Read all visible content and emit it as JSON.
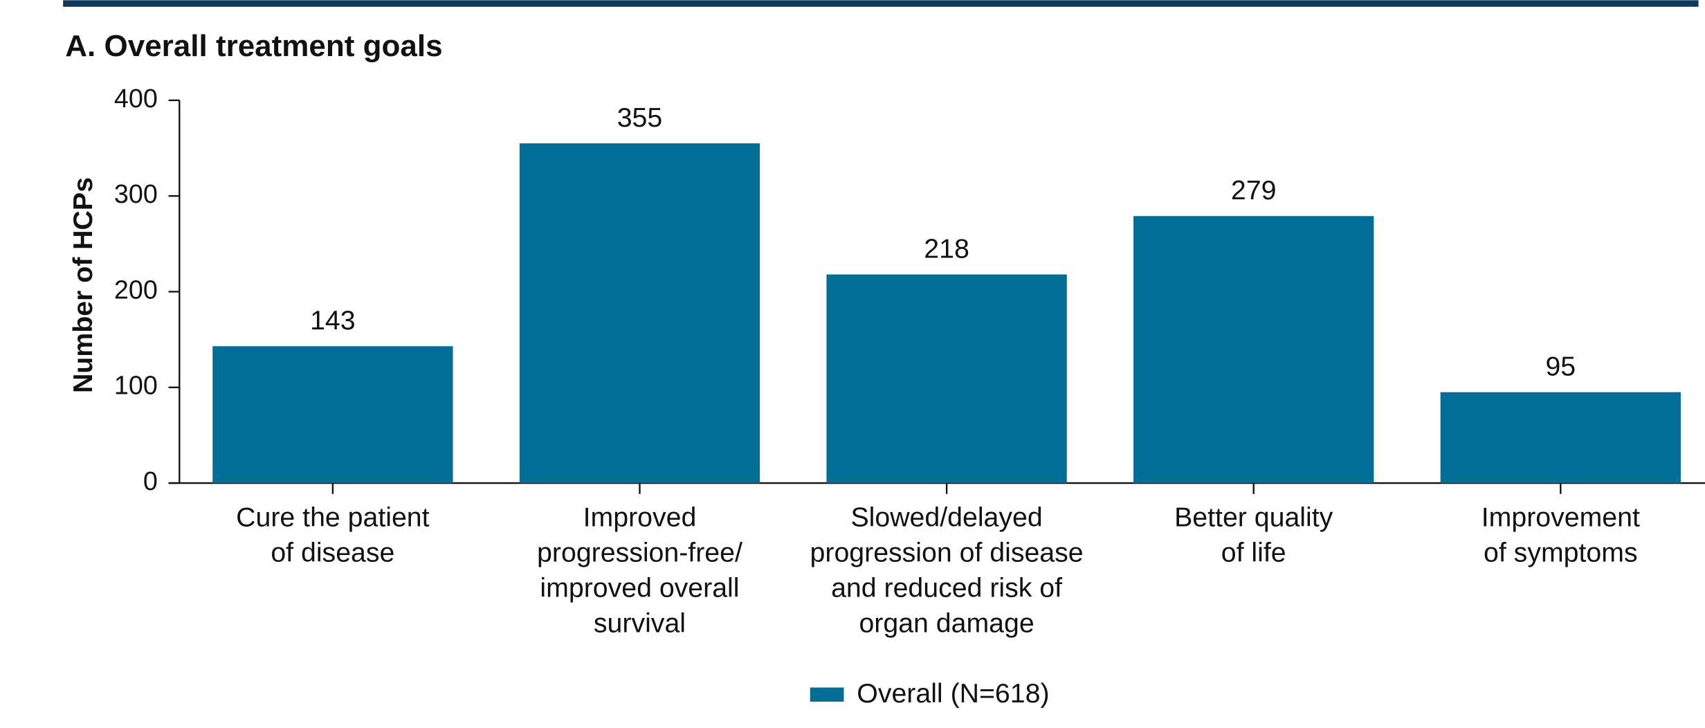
{
  "chart_data": {
    "type": "bar",
    "title": "A. Overall treatment goals",
    "y_label": "Number of HCPs",
    "categories": [
      [
        "Cure the patient",
        "of disease"
      ],
      [
        "Improved",
        "progression-free/",
        "improved overall",
        "survival"
      ],
      [
        "Slowed/delayed",
        "progression of disease",
        "and reduced risk of",
        "organ damage"
      ],
      [
        "Better quality",
        "of life"
      ],
      [
        "Improvement",
        "of symptoms"
      ]
    ],
    "series": [
      {
        "name": "Overall (N=618)",
        "color": "#006e96",
        "values": [
          143,
          355,
          218,
          279,
          95
        ]
      }
    ],
    "ylim": [
      0,
      400
    ],
    "yticks": [
      0,
      100,
      200,
      300,
      400
    ],
    "grid": false,
    "legend": "bottom"
  }
}
